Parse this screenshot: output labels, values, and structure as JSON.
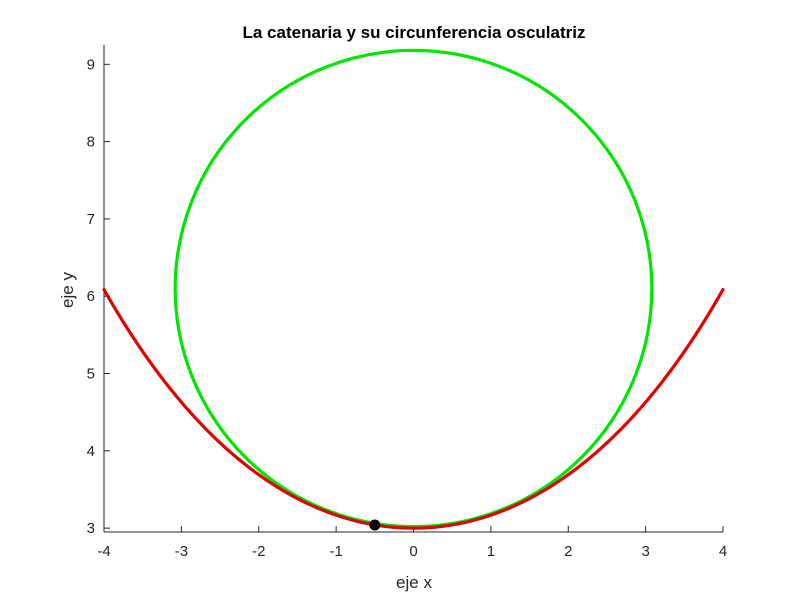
{
  "chart_data": {
    "type": "line",
    "title": "La catenaria y su circunferencia osculatriz",
    "xlabel": "eje x",
    "ylabel": "eje y",
    "xlim": [
      -4,
      4
    ],
    "ylim": [
      2.95,
      9.25
    ],
    "xticks": [
      "-4",
      "-3",
      "-2",
      "-1",
      "0",
      "1",
      "2",
      "3",
      "4"
    ],
    "yticks": [
      "3",
      "4",
      "5",
      "6",
      "7",
      "8",
      "9"
    ],
    "grid": false,
    "series": [
      {
        "kind": "curve",
        "color": "#e00000",
        "equation": "y = 3*cosh(x/3)",
        "x_range": [
          -4,
          4
        ]
      },
      {
        "kind": "circle",
        "color": "#00e600",
        "center": [
          0,
          6.1
        ],
        "radius": 3.08
      },
      {
        "kind": "point",
        "color": "#000000",
        "x": -0.5,
        "y": 3.04
      }
    ]
  }
}
